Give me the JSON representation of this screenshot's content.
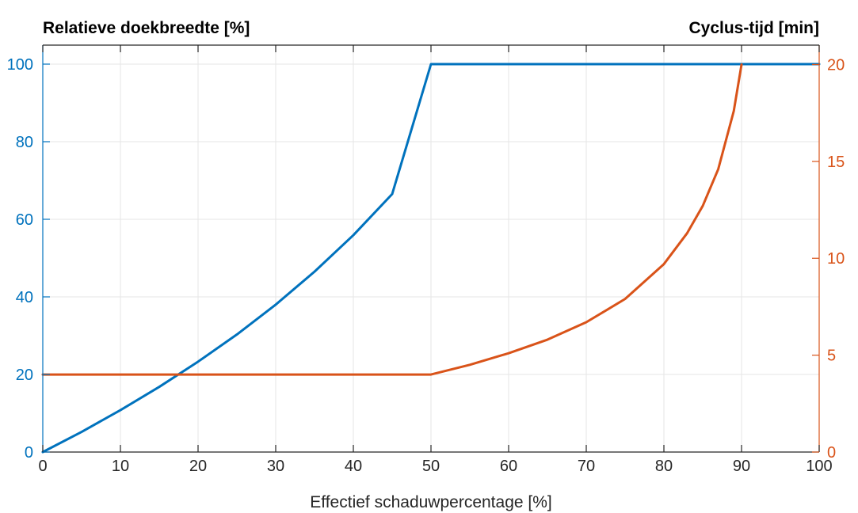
{
  "chart_data": {
    "type": "line",
    "y_left_label": "Relatieve doekbreedte [%]",
    "y_right_label": "Cyclus-tijd [min]",
    "xlabel": "Effectief schaduwpercentage [%]",
    "xlim": [
      0,
      100
    ],
    "ylim_left": [
      0,
      100
    ],
    "ylim_right": [
      0,
      21
    ],
    "x_ticks": [
      "0",
      "10",
      "20",
      "30",
      "40",
      "50",
      "60",
      "70",
      "80",
      "90",
      "100"
    ],
    "y_left_ticks": [
      "0",
      "20",
      "40",
      "60",
      "80",
      "100"
    ],
    "y_right_ticks": [
      "0",
      "5",
      "10",
      "15",
      "20"
    ],
    "grid": true,
    "series": [
      {
        "axis": "left",
        "color": "#0072BD",
        "points": [
          [
            0,
            0
          ],
          [
            5,
            5.2
          ],
          [
            10,
            10.8
          ],
          [
            15,
            16.8
          ],
          [
            20,
            23.3
          ],
          [
            25,
            30.3
          ],
          [
            30,
            38.0
          ],
          [
            35,
            46.5
          ],
          [
            40,
            55.9
          ],
          [
            45,
            66.5
          ],
          [
            50,
            100
          ],
          [
            100,
            100
          ]
        ]
      },
      {
        "axis": "right",
        "color": "#D95319",
        "points": [
          [
            0,
            4.0
          ],
          [
            10,
            4.0
          ],
          [
            20,
            4.0
          ],
          [
            30,
            4.0
          ],
          [
            40,
            4.0
          ],
          [
            50,
            4.0
          ],
          [
            55,
            4.5
          ],
          [
            60,
            5.1
          ],
          [
            65,
            5.8
          ],
          [
            70,
            6.7
          ],
          [
            75,
            7.9
          ],
          [
            80,
            9.7
          ],
          [
            83,
            11.3
          ],
          [
            85,
            12.7
          ],
          [
            87,
            14.6
          ],
          [
            89,
            17.6
          ],
          [
            90,
            20.0
          ]
        ]
      }
    ]
  }
}
